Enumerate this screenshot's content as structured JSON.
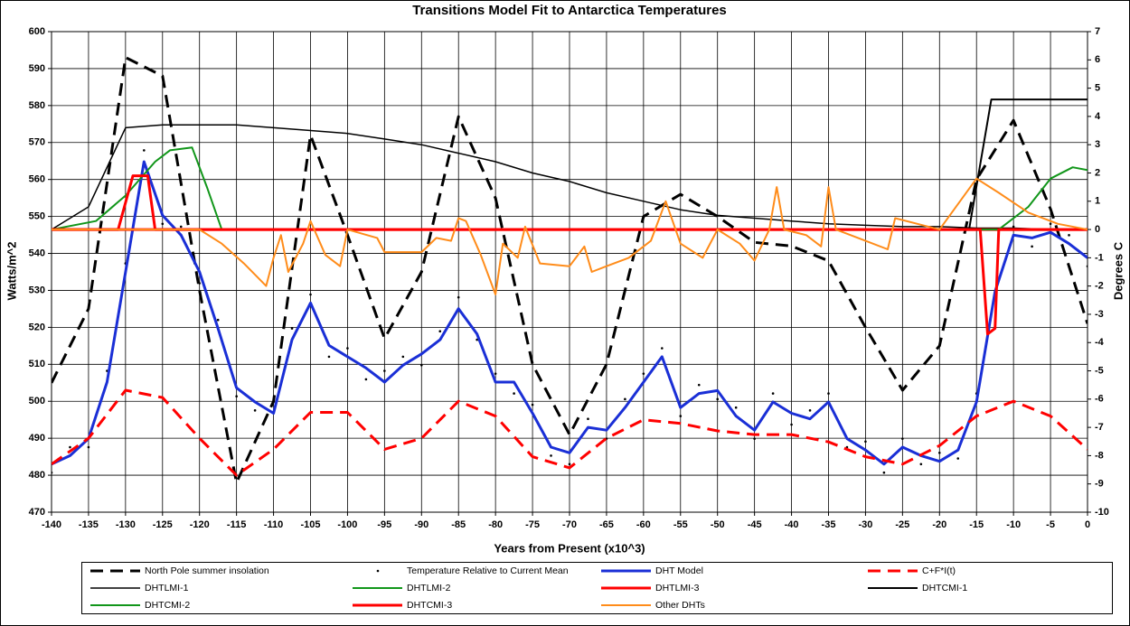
{
  "chart_data": {
    "type": "line",
    "title": "Transitions Model Fit to Antarctica Temperatures",
    "x_label": "Years from Present (x10^3)",
    "y_label": "Watts/m^2",
    "y2_label": "Degrees C",
    "xlim": [
      -140,
      0
    ],
    "xticks": [
      -140,
      -135,
      -130,
      -125,
      -120,
      -115,
      -110,
      -105,
      -100,
      -95,
      -90,
      -85,
      -80,
      -75,
      -70,
      -65,
      -60,
      -55,
      -50,
      -45,
      -40,
      -35,
      -30,
      -25,
      -20,
      -15,
      -10,
      -5,
      0
    ],
    "ylim": [
      470,
      600
    ],
    "yticks": [
      470,
      480,
      490,
      500,
      510,
      520,
      530,
      540,
      550,
      560,
      570,
      580,
      590,
      600
    ],
    "y2lim": [
      -10,
      7
    ],
    "y2ticks": [
      -10,
      -9,
      -8,
      -7,
      -6,
      -5,
      -4,
      -3,
      -2,
      -1,
      0,
      1,
      2,
      3,
      4,
      5,
      6,
      7
    ],
    "grid": true,
    "x": [
      -140,
      -135,
      -130,
      -125,
      -120,
      -115,
      -110,
      -105,
      -100,
      -95,
      -90,
      -85,
      -80,
      -75,
      -70,
      -65,
      -60,
      -55,
      -50,
      -45,
      -40,
      -35,
      -30,
      -25,
      -20,
      -15,
      -10,
      -5,
      0
    ],
    "series": [
      {
        "name": "North Pole summer insolation",
        "color": "#000000",
        "style": "dashed",
        "width": 3,
        "axis": "y",
        "values": [
          505,
          525,
          593,
          588,
          530,
          478,
          500,
          572,
          545,
          517,
          535,
          577,
          555,
          510,
          491,
          510,
          550,
          556,
          550,
          543,
          542,
          538,
          520,
          503,
          515,
          560,
          576,
          552,
          521
        ]
      },
      {
        "name": "Temperature Relative to Current Mean",
        "color": "#000000",
        "style": "dots",
        "axis": "y2",
        "x": [
          -140,
          -137.5,
          -135,
          -132.5,
          -130,
          -127.5,
          -125,
          -122.5,
          -120,
          -117.5,
          -115,
          -112.5,
          -110,
          -107.5,
          -105,
          -102.5,
          -100,
          -97.5,
          -95,
          -92.5,
          -90,
          -87.5,
          -85,
          -82.5,
          -80,
          -77.5,
          -75,
          -72.5,
          -70,
          -67.5,
          -65,
          -62.5,
          -60,
          -57.5,
          -55,
          -52.5,
          -50,
          -47.5,
          -45,
          -42.5,
          -40,
          -37.5,
          -35,
          -32.5,
          -30,
          -27.5,
          -25,
          -22.5,
          -20,
          -17.5,
          -15,
          -12.5,
          -10,
          -7.5,
          -5,
          -2.5,
          0
        ],
        "values": [
          -8.6,
          -7.7,
          -7.7,
          -5.0,
          -1.2,
          2.8,
          0.2,
          0.1,
          -1.9,
          -3.2,
          -5.9,
          -6.4,
          -6.1,
          -3.5,
          -2.3,
          -4.5,
          -4.2,
          -5.3,
          -5.0,
          -4.5,
          -4.8,
          -3.6,
          -2.4,
          -3.9,
          -5.1,
          -5.8,
          -6.2,
          -8.0,
          -8.3,
          -6.7,
          -7.4,
          -6.0,
          -5.1,
          -4.2,
          -6.6,
          -5.5,
          -6.0,
          -6.3,
          -7.4,
          -5.8,
          -6.9,
          -6.4,
          -5.8,
          -7.7,
          -7.5,
          -8.6,
          -7.4,
          -8.3,
          -7.9,
          -8.1,
          -5.8,
          -2.5,
          0.1,
          -0.6,
          0.2,
          -0.2,
          -1.3
        ]
      },
      {
        "name": "DHT Model",
        "color": "#1a2fd6",
        "style": "solid",
        "width": 3,
        "axis": "y2",
        "x": [
          -140,
          -137.5,
          -135,
          -132.5,
          -130,
          -127.5,
          -125,
          -122.5,
          -120,
          -117.5,
          -115,
          -112.5,
          -110,
          -107.5,
          -105,
          -102.5,
          -100,
          -97.5,
          -95,
          -92.5,
          -90,
          -87.5,
          -85,
          -82.5,
          -80,
          -77.5,
          -75,
          -72.5,
          -70,
          -67.5,
          -65,
          -62.5,
          -60,
          -57.5,
          -55,
          -52.5,
          -50,
          -47.5,
          -45,
          -42.5,
          -40,
          -37.5,
          -35,
          -32.5,
          -30,
          -27.5,
          -25,
          -22.5,
          -20,
          -17.5,
          -15,
          -12.5,
          -10,
          -7.5,
          -5,
          -2.5,
          0
        ],
        "values": [
          -8.3,
          -8.0,
          -7.4,
          -5.4,
          -1.5,
          2.4,
          0.5,
          -0.2,
          -1.5,
          -3.5,
          -5.6,
          -6.1,
          -6.5,
          -3.9,
          -2.6,
          -4.1,
          -4.5,
          -4.9,
          -5.4,
          -4.8,
          -4.4,
          -3.9,
          -2.8,
          -3.7,
          -5.4,
          -5.4,
          -6.5,
          -7.7,
          -7.9,
          -7.0,
          -7.1,
          -6.3,
          -5.4,
          -4.5,
          -6.3,
          -5.8,
          -5.7,
          -6.6,
          -7.1,
          -6.1,
          -6.5,
          -6.7,
          -6.1,
          -7.4,
          -7.8,
          -8.3,
          -7.7,
          -8.0,
          -8.2,
          -7.8,
          -6.1,
          -2.2,
          -0.2,
          -0.3,
          -0.1,
          -0.5,
          -1.0
        ]
      },
      {
        "name": "C+F*I(t)",
        "color": "#ff0000",
        "style": "dashed",
        "width": 3,
        "axis": "y",
        "values": [
          483,
          490,
          503,
          501,
          490,
          480,
          487,
          497,
          497,
          487,
          490,
          500,
          496,
          485,
          482,
          490,
          495,
          494,
          492,
          491,
          491,
          489,
          485,
          483,
          488,
          496,
          500,
          496,
          487
        ]
      },
      {
        "name": "DHTLMI-1",
        "color": "#000000",
        "style": "solid",
        "width": 1.5,
        "axis": "y2",
        "values": [
          0,
          0.8,
          3.6,
          3.7,
          3.7,
          3.7,
          3.6,
          3.5,
          3.4,
          3.2,
          3.0,
          2.7,
          2.4,
          2.0,
          1.7,
          1.3,
          1.0,
          0.7,
          0.5,
          0.4,
          0.3,
          0.2,
          0.15,
          0.1,
          0.1,
          0.05,
          0.05,
          0,
          0
        ]
      },
      {
        "name": "DHTLMI-2",
        "color": "#11961a",
        "style": "solid",
        "width": 2,
        "axis": "y2",
        "x": [
          -140,
          -134,
          -130,
          -126,
          -124,
          -121,
          -119,
          -117,
          0
        ],
        "values": [
          0,
          0.3,
          1.2,
          2.4,
          2.8,
          2.9,
          1.5,
          0,
          0
        ]
      },
      {
        "name": "DHTLMI-3",
        "color": "#ff0000",
        "style": "solid",
        "width": 3,
        "axis": "y2",
        "x": [
          -140,
          -131,
          -129,
          -127,
          -126,
          0
        ],
        "values": [
          0,
          0,
          1.9,
          1.9,
          0,
          0
        ]
      },
      {
        "name": "DHTCMI-1",
        "color": "#000000",
        "style": "solid",
        "width": 2,
        "axis": "y2",
        "x": [
          -140,
          -16,
          -13,
          0
        ],
        "values": [
          0,
          0,
          4.6,
          4.6
        ]
      },
      {
        "name": "DHTCMI-2",
        "color": "#11961a",
        "style": "solid",
        "width": 2,
        "axis": "y2",
        "x": [
          -140,
          -12,
          -8,
          -5,
          -2,
          0
        ],
        "values": [
          0,
          0,
          0.8,
          1.8,
          2.2,
          2.1
        ]
      },
      {
        "name": "DHTCMI-3",
        "color": "#ff0000",
        "style": "solid",
        "width": 3,
        "axis": "y2",
        "x": [
          -140,
          -14.5,
          -13.5,
          -12.5,
          -12,
          0
        ],
        "values": [
          0,
          0,
          -3.7,
          -3.5,
          0,
          0
        ]
      },
      {
        "name": "Other DHTs",
        "color": "#ff8c1a",
        "style": "solid",
        "width": 2,
        "axis": "y2",
        "x": [
          -140,
          -120,
          -117,
          -114,
          -111,
          -110,
          -109,
          -108,
          -106,
          -105,
          -103,
          -101,
          -100,
          -96,
          -95,
          -90,
          -88,
          -86,
          -85,
          -84,
          -82,
          -80,
          -79,
          -77,
          -76,
          -74,
          -70,
          -68,
          -67,
          -65,
          -62,
          -59,
          -57,
          -55,
          -52,
          -50,
          -47,
          -45,
          -43,
          -42,
          -41,
          -38,
          -36,
          -35,
          -34,
          -30,
          -27,
          -26,
          -20,
          -15,
          -12,
          -8,
          -4,
          0
        ],
        "values": [
          0,
          0,
          -0.5,
          -1.2,
          -2.0,
          -1.0,
          -0.2,
          -1.5,
          -0.5,
          0.3,
          -0.9,
          -1.3,
          0,
          -0.3,
          -0.8,
          -0.8,
          -0.3,
          -0.4,
          0.4,
          0.3,
          -0.9,
          -2.3,
          -0.5,
          -1.0,
          0.1,
          -1.2,
          -1.3,
          -0.6,
          -1.5,
          -1.3,
          -1.0,
          -0.4,
          1.0,
          -0.5,
          -1.0,
          0,
          -0.5,
          -1.1,
          0,
          1.5,
          0,
          -0.2,
          -0.6,
          1.5,
          0,
          -0.4,
          -0.7,
          0.4,
          0,
          1.8,
          1.3,
          0.6,
          0.2,
          0
        ]
      }
    ]
  }
}
